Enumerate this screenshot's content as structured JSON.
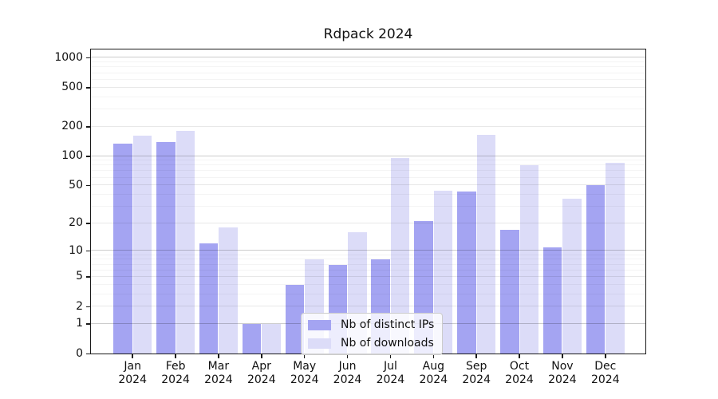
{
  "chart_data": {
    "type": "bar",
    "title": "Rdpack 2024",
    "xlabel": "",
    "ylabel": "",
    "y_scale": "log10(1+y)",
    "ylim": [
      0,
      1270
    ],
    "grid": "on",
    "legend_position": "lower-center-inside",
    "y_ticks": [
      1000,
      500,
      200,
      100,
      50,
      20,
      10,
      5,
      2,
      1,
      0
    ],
    "categories": [
      "Jan",
      "Feb",
      "Mar",
      "Apr",
      "May",
      "Jun",
      "Jul",
      "Aug",
      "Sep",
      "Oct",
      "Nov",
      "Dec"
    ],
    "year_label": "2024",
    "series": [
      {
        "name": "Nb of distinct IPs",
        "color": "#a4a4f2",
        "values": [
          133,
          140,
          12,
          1,
          4,
          7,
          8,
          21,
          43,
          17,
          11,
          50
        ]
      },
      {
        "name": "Nb of downloads",
        "color": "#dcdcf8",
        "values": [
          163,
          180,
          18,
          1,
          8,
          16,
          96,
          44,
          165,
          80,
          36,
          85
        ]
      }
    ]
  },
  "colors": {
    "background": "#ffffff",
    "axis": "#1a1a1a",
    "text": "#111111",
    "grid_major": "#cccccc",
    "grid_mid": "#e8e8e8",
    "grid_minor": "#f4f4f4",
    "legend_border": "#cccccc"
  }
}
